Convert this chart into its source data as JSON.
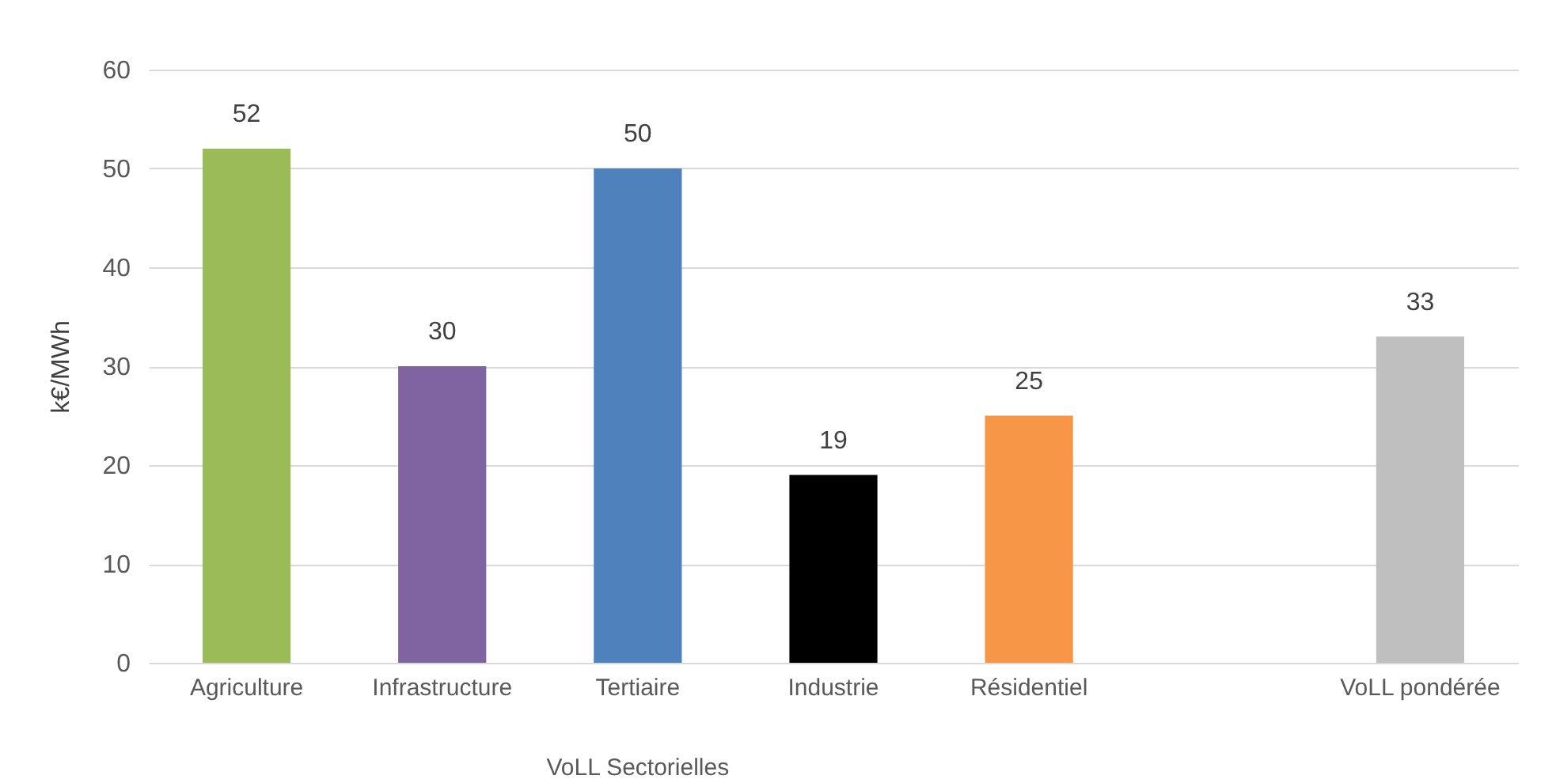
{
  "chart_data": {
    "type": "bar",
    "categories": [
      "Agriculture",
      "Infrastructure",
      "Tertiaire",
      "Industrie",
      "Résidentiel",
      null,
      "VoLL pondérée"
    ],
    "values": [
      52,
      30,
      50,
      19,
      25,
      null,
      33
    ],
    "colors": [
      "#9bbb59",
      "#8064a2",
      "#4f81bd",
      "#000000",
      "#f79646",
      null,
      "#bfbfbf"
    ],
    "ylabel": "k€/MWh",
    "ylim": [
      0,
      60
    ],
    "yticks": [
      0,
      10,
      20,
      30,
      40,
      50,
      60
    ],
    "grid": "y",
    "data_labels": true,
    "annotations": [
      "VoLL Sectorielles"
    ]
  }
}
